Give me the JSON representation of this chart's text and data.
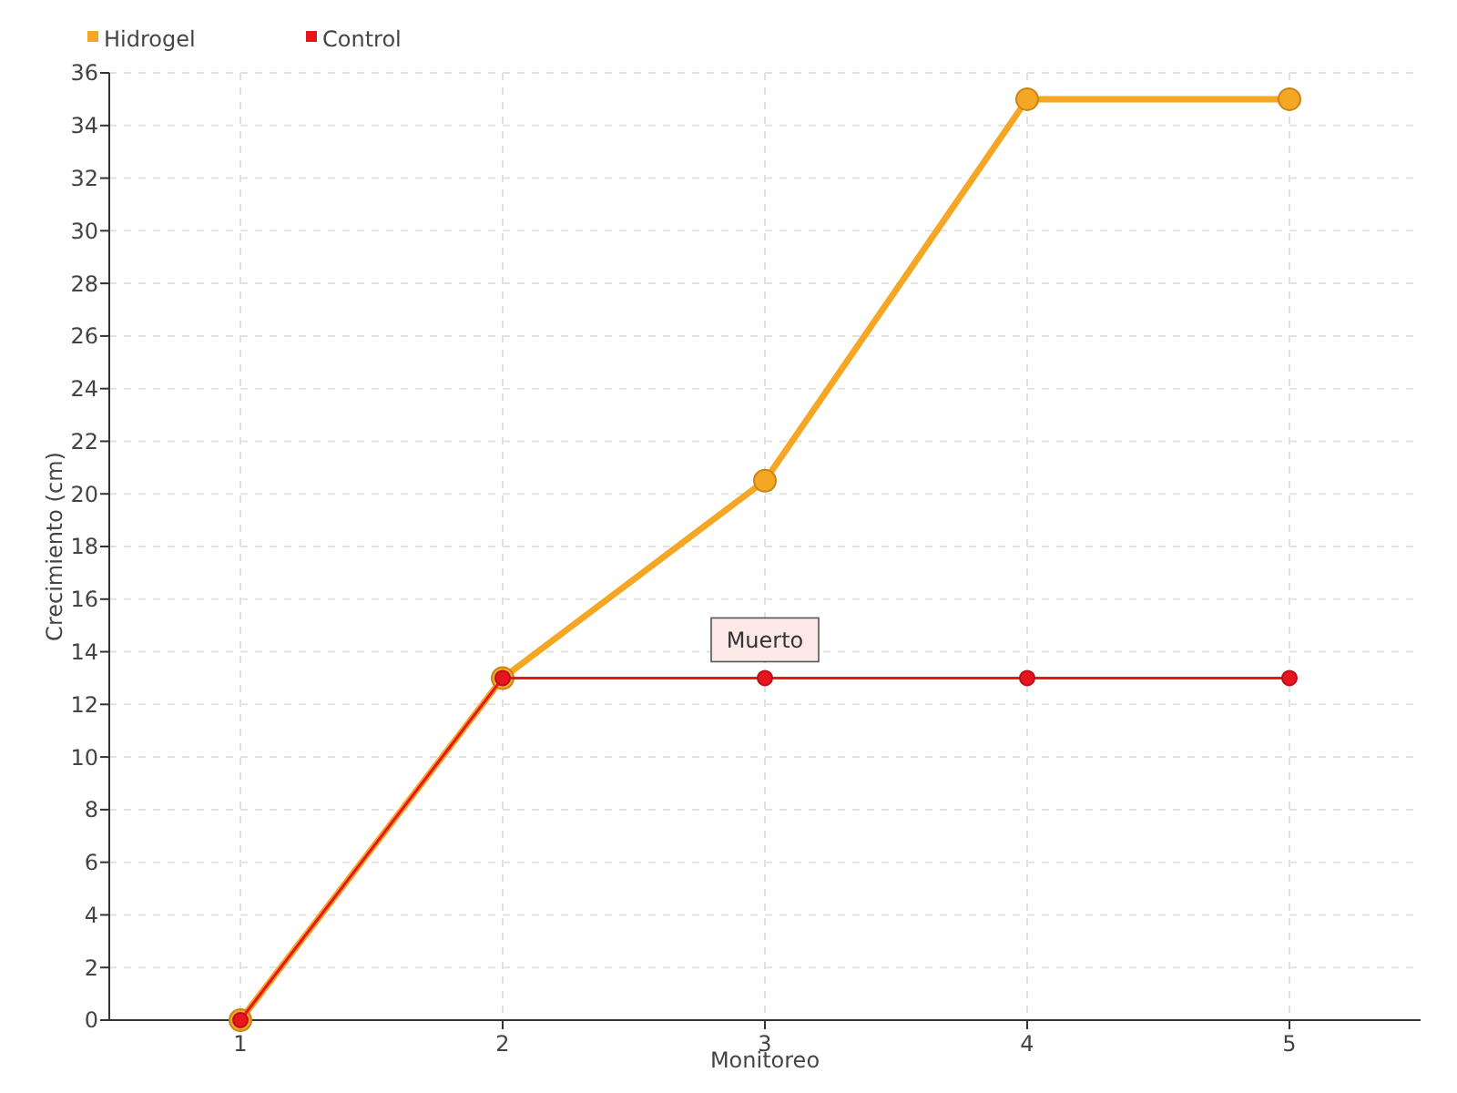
{
  "chart_data": {
    "type": "line",
    "xlabel": "Monitoreo",
    "ylabel": "Crecimiento (cm)",
    "x": [
      1,
      2,
      3,
      4,
      5
    ],
    "series": [
      {
        "name": "Hidrogel",
        "color": "#f5a623",
        "values": [
          0,
          13,
          20.5,
          35,
          35
        ]
      },
      {
        "name": "Control",
        "color": "#e8141e",
        "values": [
          0,
          13,
          13,
          13,
          13
        ]
      }
    ],
    "xlim": [
      0.5,
      5.5
    ],
    "xticks": [
      1,
      2,
      3,
      4,
      5
    ],
    "ylim": [
      0,
      36
    ],
    "yticks": [
      0,
      2,
      4,
      6,
      8,
      10,
      12,
      14,
      16,
      18,
      20,
      22,
      24,
      26,
      28,
      30,
      32,
      34,
      36
    ],
    "grid": true,
    "legend": "top left",
    "marker": "circle",
    "line_style": "solid",
    "annotations": [
      {
        "text": "Muerto",
        "x": 3,
        "y": 13
      }
    ]
  }
}
